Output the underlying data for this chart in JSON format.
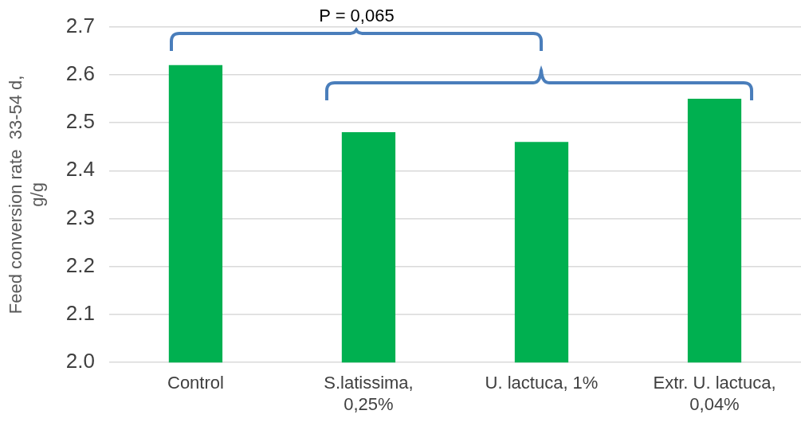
{
  "chart_data": {
    "type": "bar",
    "ylabel": "Feed conversion rate  33-54 d, g/g",
    "categories": [
      "Control",
      "S.latissima, 0,25%",
      "U. lactuca, 1%",
      "Extr. U. lactuca, 0,04%"
    ],
    "values": [
      2.62,
      2.48,
      2.46,
      2.55
    ],
    "color": "#00b050",
    "ylim": [
      2.0,
      2.7
    ],
    "yticks": [
      {
        "value": 2.0,
        "label": "2.0"
      },
      2.1,
      2.2,
      2.3,
      2.4,
      2.5,
      2.6,
      2.7
    ],
    "grid": "y",
    "legend": false,
    "annotations": [
      "P = 0,065"
    ]
  }
}
